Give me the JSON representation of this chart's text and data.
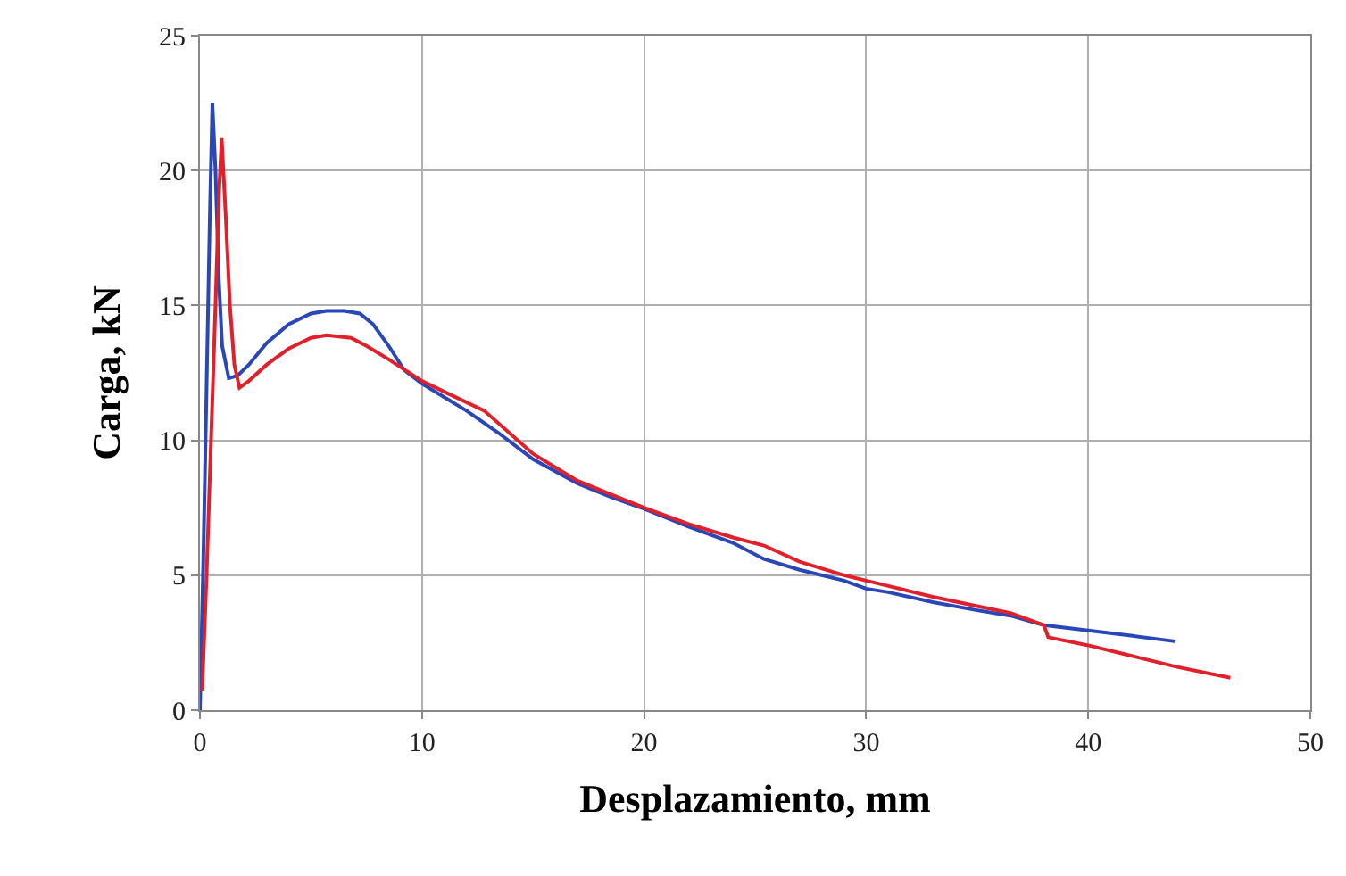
{
  "chart_data": {
    "type": "line",
    "xlabel": "Desplazamiento, mm",
    "ylabel": "Carga, kN",
    "xlim": [
      0,
      50
    ],
    "ylim": [
      0,
      25
    ],
    "xticks": [
      0,
      10,
      20,
      30,
      40,
      50
    ],
    "yticks": [
      0,
      5,
      10,
      15,
      20,
      25
    ],
    "grid": true,
    "marker": "none",
    "line_style": "solid",
    "series": [
      {
        "color": "#2a47b8",
        "x": [
          0,
          0.15,
          0.3,
          0.45,
          0.56,
          0.7,
          0.85,
          1.0,
          1.3,
          1.7,
          2.2,
          3.0,
          4.0,
          5.0,
          5.7,
          6.5,
          7.2,
          7.8,
          8.5,
          9.2,
          10,
          11,
          12,
          13.4,
          15,
          17,
          18.5,
          20,
          22,
          24,
          25.4,
          27,
          29,
          30,
          31,
          33,
          35,
          36.5,
          38,
          40,
          42,
          43.9
        ],
        "values": [
          0,
          5.5,
          12,
          18.5,
          22.5,
          20,
          16,
          13.5,
          12.3,
          12.4,
          12.8,
          13.6,
          14.3,
          14.7,
          14.8,
          14.8,
          14.7,
          14.3,
          13.5,
          12.6,
          12.1,
          11.6,
          11.1,
          10.3,
          9.3,
          8.4,
          7.9,
          7.46,
          6.8,
          6.2,
          5.6,
          5.2,
          4.8,
          4.5,
          4.37,
          4.0,
          3.7,
          3.5,
          3.15,
          2.95,
          2.75,
          2.55
        ]
      },
      {
        "color": "#e0202a",
        "x": [
          0.1,
          0.3,
          0.5,
          0.7,
          0.85,
          0.98,
          1.15,
          1.35,
          1.55,
          1.78,
          2.2,
          3.0,
          4.0,
          5.0,
          5.7,
          6.8,
          7.5,
          8.5,
          10,
          11,
          12.8,
          15,
          17,
          18.5,
          20,
          22,
          24,
          25.4,
          27,
          29,
          30,
          31,
          33,
          35,
          36.5,
          38,
          38.2,
          40,
          42,
          44,
          46.4
        ],
        "values": [
          0.7,
          5,
          10,
          15,
          19,
          21.2,
          18.5,
          15,
          12.8,
          11.95,
          12.2,
          12.8,
          13.4,
          13.8,
          13.9,
          13.8,
          13.5,
          13.0,
          12.2,
          11.8,
          11.1,
          9.5,
          8.5,
          8.0,
          7.5,
          6.9,
          6.4,
          6.1,
          5.5,
          5.0,
          4.8,
          4.6,
          4.2,
          3.85,
          3.6,
          3.15,
          2.7,
          2.4,
          2.0,
          1.6,
          1.2
        ]
      }
    ]
  }
}
